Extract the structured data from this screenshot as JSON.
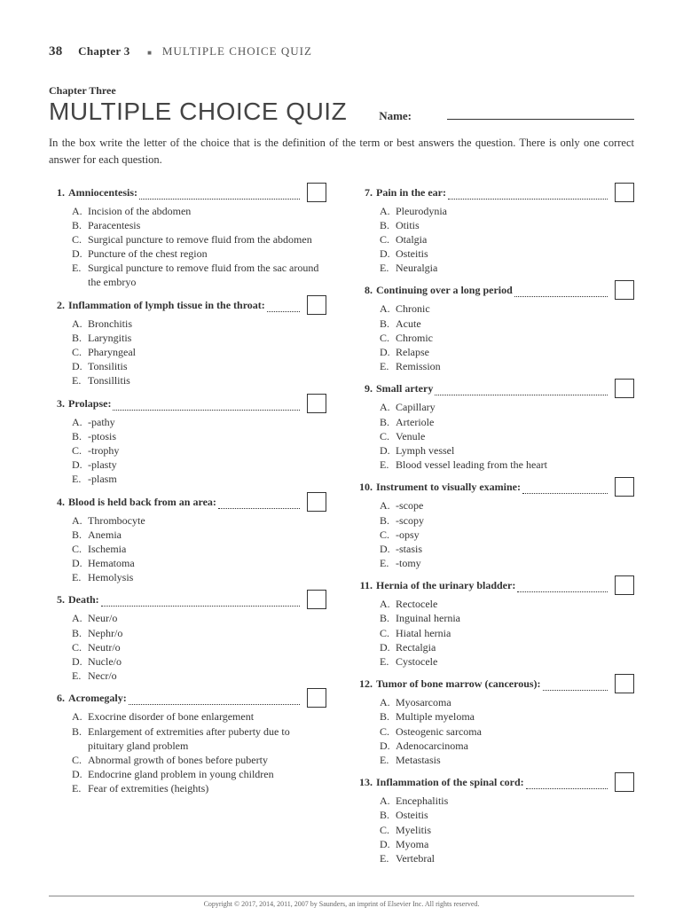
{
  "header": {
    "page_number": "38",
    "chapter_label": "Chapter 3",
    "bullet": "■",
    "running_title": "MULTIPLE CHOICE QUIZ"
  },
  "heading": {
    "chapter_line": "Chapter Three",
    "main_title": "MULTIPLE CHOICE QUIZ",
    "name_label": "Name:"
  },
  "instructions": "In the box write the letter of the choice that is the definition of the term or best answers the question. There is only one correct answer for each question.",
  "questions_left": [
    {
      "num": "1.",
      "term": "Amniocentesis:",
      "choices": [
        {
          "l": "A.",
          "t": "Incision of the abdomen"
        },
        {
          "l": "B.",
          "t": "Paracentesis"
        },
        {
          "l": "C.",
          "t": "Surgical puncture to remove fluid from the abdomen"
        },
        {
          "l": "D.",
          "t": "Puncture of the chest region"
        },
        {
          "l": "E.",
          "t": "Surgical puncture to remove fluid from the sac around the embryo"
        }
      ]
    },
    {
      "num": "2.",
      "term": "Inflammation of lymph tissue in the throat:",
      "choices": [
        {
          "l": "A.",
          "t": "Bronchitis"
        },
        {
          "l": "B.",
          "t": "Laryngitis"
        },
        {
          "l": "C.",
          "t": "Pharyngeal"
        },
        {
          "l": "D.",
          "t": "Tonsilitis"
        },
        {
          "l": "E.",
          "t": "Tonsillitis"
        }
      ]
    },
    {
      "num": "3.",
      "term": "Prolapse:",
      "choices": [
        {
          "l": "A.",
          "t": "-pathy"
        },
        {
          "l": "B.",
          "t": "-ptosis"
        },
        {
          "l": "C.",
          "t": "-trophy"
        },
        {
          "l": "D.",
          "t": "-plasty"
        },
        {
          "l": "E.",
          "t": "-plasm"
        }
      ]
    },
    {
      "num": "4.",
      "term": "Blood is held back from an area:",
      "choices": [
        {
          "l": "A.",
          "t": "Thrombocyte"
        },
        {
          "l": "B.",
          "t": "Anemia"
        },
        {
          "l": "C.",
          "t": "Ischemia"
        },
        {
          "l": "D.",
          "t": "Hematoma"
        },
        {
          "l": "E.",
          "t": "Hemolysis"
        }
      ]
    },
    {
      "num": "5.",
      "term": "Death:",
      "choices": [
        {
          "l": "A.",
          "t": "Neur/o"
        },
        {
          "l": "B.",
          "t": "Nephr/o"
        },
        {
          "l": "C.",
          "t": "Neutr/o"
        },
        {
          "l": "D.",
          "t": "Nucle/o"
        },
        {
          "l": "E.",
          "t": "Necr/o"
        }
      ]
    },
    {
      "num": "6.",
      "term": "Acromegaly:",
      "choices": [
        {
          "l": "A.",
          "t": "Exocrine disorder of bone enlargement"
        },
        {
          "l": "B.",
          "t": "Enlargement of extremities after puberty due to pituitary gland problem"
        },
        {
          "l": "C.",
          "t": "Abnormal growth of bones before puberty"
        },
        {
          "l": "D.",
          "t": "Endocrine gland problem in young children"
        },
        {
          "l": "E.",
          "t": "Fear of extremities (heights)"
        }
      ]
    }
  ],
  "questions_right": [
    {
      "num": "7.",
      "term": "Pain in the ear:",
      "choices": [
        {
          "l": "A.",
          "t": "Pleurodynia"
        },
        {
          "l": "B.",
          "t": "Otitis"
        },
        {
          "l": "C.",
          "t": "Otalgia"
        },
        {
          "l": "D.",
          "t": "Osteitis"
        },
        {
          "l": "E.",
          "t": "Neuralgia"
        }
      ]
    },
    {
      "num": "8.",
      "term": "Continuing over a long period",
      "choices": [
        {
          "l": "A.",
          "t": "Chronic"
        },
        {
          "l": "B.",
          "t": "Acute"
        },
        {
          "l": "C.",
          "t": "Chromic"
        },
        {
          "l": "D.",
          "t": "Relapse"
        },
        {
          "l": "E.",
          "t": "Remission"
        }
      ]
    },
    {
      "num": "9.",
      "term": "Small artery",
      "choices": [
        {
          "l": "A.",
          "t": "Capillary"
        },
        {
          "l": "B.",
          "t": "Arteriole"
        },
        {
          "l": "C.",
          "t": "Venule"
        },
        {
          "l": "D.",
          "t": "Lymph vessel"
        },
        {
          "l": "E.",
          "t": "Blood vessel leading from the heart"
        }
      ]
    },
    {
      "num": "10.",
      "term": "Instrument to visually examine:",
      "choices": [
        {
          "l": "A.",
          "t": "-scope"
        },
        {
          "l": "B.",
          "t": "-scopy"
        },
        {
          "l": "C.",
          "t": "-opsy"
        },
        {
          "l": "D.",
          "t": "-stasis"
        },
        {
          "l": "E.",
          "t": "-tomy"
        }
      ]
    },
    {
      "num": "11.",
      "term": "Hernia of the urinary bladder:",
      "choices": [
        {
          "l": "A.",
          "t": "Rectocele"
        },
        {
          "l": "B.",
          "t": "Inguinal hernia"
        },
        {
          "l": "C.",
          "t": "Hiatal hernia"
        },
        {
          "l": "D.",
          "t": "Rectalgia"
        },
        {
          "l": "E.",
          "t": "Cystocele"
        }
      ]
    },
    {
      "num": "12.",
      "term": "Tumor of bone marrow (cancerous):",
      "choices": [
        {
          "l": "A.",
          "t": "Myosarcoma"
        },
        {
          "l": "B.",
          "t": "Multiple myeloma"
        },
        {
          "l": "C.",
          "t": "Osteogenic sarcoma"
        },
        {
          "l": "D.",
          "t": "Adenocarcinoma"
        },
        {
          "l": "E.",
          "t": "Metastasis"
        }
      ]
    },
    {
      "num": "13.",
      "term": "Inflammation of the spinal cord:",
      "choices": [
        {
          "l": "A.",
          "t": "Encephalitis"
        },
        {
          "l": "B.",
          "t": "Osteitis"
        },
        {
          "l": "C.",
          "t": "Myelitis"
        },
        {
          "l": "D.",
          "t": "Myoma"
        },
        {
          "l": "E.",
          "t": "Vertebral"
        }
      ]
    }
  ],
  "copyright": "Copyright © 2017, 2014, 2011, 2007 by Saunders, an imprint of Elsevier Inc. All rights reserved."
}
